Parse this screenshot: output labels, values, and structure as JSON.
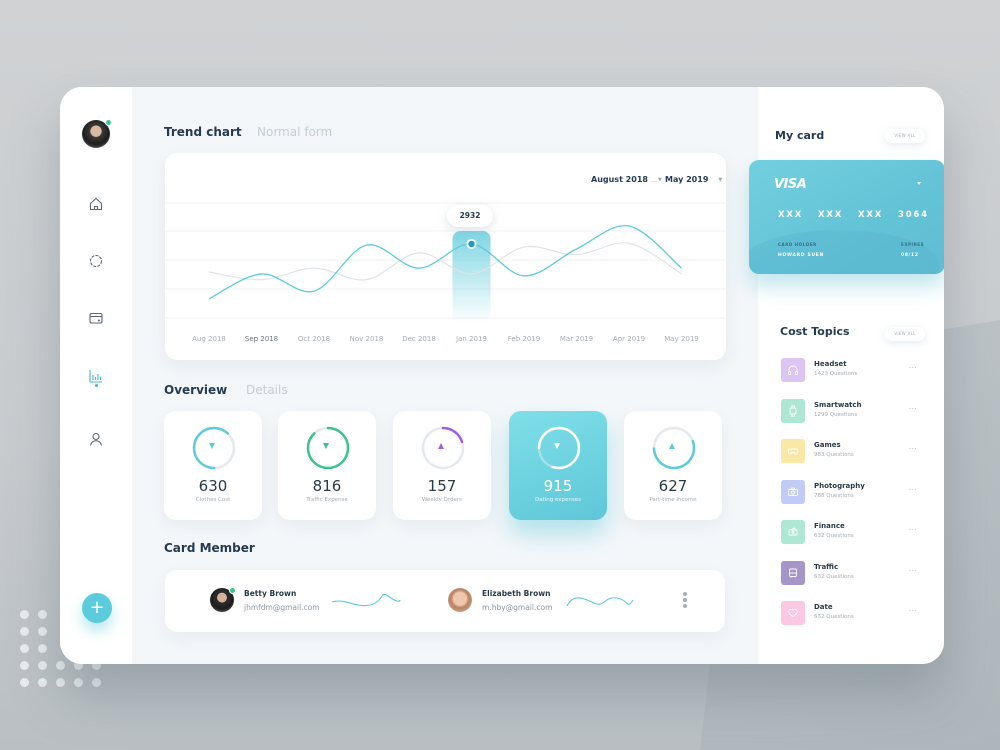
{
  "sidebar": {
    "nav": [
      {
        "name": "home",
        "icon": "home-icon"
      },
      {
        "name": "discover",
        "icon": "compass-icon"
      },
      {
        "name": "wallet",
        "icon": "wallet-icon"
      },
      {
        "name": "statistics",
        "icon": "bar-chart-icon",
        "active": true
      },
      {
        "name": "profile",
        "icon": "user-icon"
      }
    ],
    "fab_label": "+"
  },
  "trend": {
    "tabs": [
      {
        "label": "Trend chart",
        "active": true
      },
      {
        "label": "Normal form",
        "active": false
      }
    ],
    "range_start": "August 2018",
    "range_end": "May 2019",
    "tooltip_value": "2932"
  },
  "chart_data": {
    "type": "line",
    "title": "Trend chart",
    "categories": [
      "Aug 2018",
      "Sep 2018",
      "Oct 2018",
      "Nov 2018",
      "Dec 2018",
      "Jan 2019",
      "Feb 2019",
      "Mar 2019",
      "Apr 2019",
      "May 2019"
    ],
    "series": [
      {
        "name": "primary",
        "color": "#5ccbdc",
        "values": [
          1500,
          2150,
          1700,
          2900,
          2300,
          2932,
          2100,
          2800,
          3400,
          2300
        ]
      },
      {
        "name": "secondary",
        "color": "#dfe3e6",
        "values": [
          2200,
          2000,
          2300,
          2000,
          2700,
          2150,
          2850,
          2650,
          2950,
          2150
        ]
      }
    ],
    "highlight": {
      "category": "Jan 2019",
      "value": 2932
    },
    "grid": true,
    "xlabel": "",
    "ylabel": ""
  },
  "overview": {
    "tabs": [
      {
        "label": "Overview",
        "active": true
      },
      {
        "label": "Details",
        "active": false
      }
    ],
    "stats": [
      {
        "value": "630",
        "label": "Clothes Cost",
        "color": "#5ccbdc",
        "progress": 0.62,
        "start": 0.0,
        "trend": "down"
      },
      {
        "value": "816",
        "label": "Traffic Expense",
        "color": "#3dc48d",
        "progress": 0.88,
        "start": 0.0,
        "trend": "down"
      },
      {
        "value": "157",
        "label": "Weekly Orders",
        "color": "#a35ee0",
        "progress": 0.2,
        "start": 0.0,
        "trend": "up"
      },
      {
        "value": "915",
        "label": "Dating expenses",
        "color": "#ffffff",
        "progress": 0.8,
        "start": 0.0,
        "trend": "down",
        "highlight": true
      },
      {
        "value": "627",
        "label": "Part-time Income",
        "color": "#5ccbdc",
        "progress": 0.55,
        "start": 0.0,
        "trend": "up"
      }
    ]
  },
  "members": {
    "title": "Card Member",
    "list": [
      {
        "name": "Betty Brown",
        "email": "jhmfdm@gmail.com",
        "online": true
      },
      {
        "name": "Elizabeth Brown",
        "email": "m.hby@gmail.com",
        "online": false
      }
    ]
  },
  "my_card": {
    "title": "My card",
    "view_all": "VIEW ALL",
    "brand": "VISA",
    "number_groups": [
      "XXX",
      "XXX",
      "XXX",
      "3064"
    ],
    "holder_label": "CARD HOLDER",
    "holder_name": "HOWARD SUEN",
    "expires_label": "EXPIRES",
    "expires_value": "08/12"
  },
  "cost_topics": {
    "title": "Cost Topics",
    "view_all": "VIEW ALL",
    "items": [
      {
        "name": "Headset",
        "count": "1423 Questions",
        "color": "#dcc4f3",
        "icon": "headset-icon"
      },
      {
        "name": "Smartwatch",
        "count": "1299 Questions",
        "color": "#aee6d4",
        "icon": "smartwatch-icon"
      },
      {
        "name": "Games",
        "count": "983 Questions",
        "color": "#fbe7a6",
        "icon": "gamepad-icon"
      },
      {
        "name": "Photography",
        "count": "788 Questions",
        "color": "#c2cbf6",
        "icon": "camera-icon"
      },
      {
        "name": "Finance",
        "count": "632 Questions",
        "color": "#aee8d4",
        "icon": "money-icon"
      },
      {
        "name": "Traffic",
        "count": "632 Questions",
        "color": "#a695c9",
        "icon": "bus-icon"
      },
      {
        "name": "Date",
        "count": "632 Questions",
        "color": "#fcc7e0",
        "icon": "heart-icon"
      }
    ],
    "more": "···"
  }
}
